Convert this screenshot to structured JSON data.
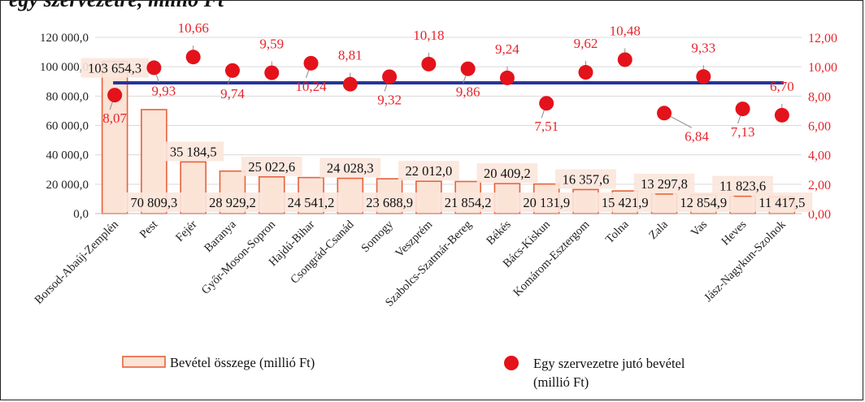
{
  "header": {
    "caption": "egy szervezetre, millió Ft"
  },
  "chart_data": {
    "type": "bar",
    "categories": [
      "Borsod-Abaúj-Zemplén",
      "Pest",
      "Fejér",
      "Baranya",
      "Győr-Moson-Sopron",
      "Hajdú-Bihar",
      "Csongrád-Csanád",
      "Somogy",
      "Veszprém",
      "Szabolcs-Szatmár-Bereg",
      "Békés",
      "Bács-Kiskun",
      "Komárom-Esztergom",
      "Tolna",
      "Zala",
      "Vas",
      "Heves",
      "Jász-Nagykun-Szolnok"
    ],
    "series": [
      {
        "name": "Bevétel összege (millió Ft)",
        "axis": "left",
        "values": [
          103654.3,
          70809.3,
          35184.5,
          28929.2,
          25022.6,
          24541.2,
          24028.3,
          23688.9,
          22012.0,
          21854.2,
          20409.2,
          20131.9,
          16357.6,
          15421.9,
          13297.8,
          12854.9,
          11823.6,
          11417.5
        ],
        "labels": [
          "103 654,3",
          "70 809,3",
          "35 184,5",
          "28 929,2",
          "25 022,6",
          "24 541,2",
          "24 028,3",
          "23 688,9",
          "22 012,0",
          "21 854,2",
          "20 409,2",
          "20 131,9",
          "16 357,6",
          "15 421,9",
          "13 297,8",
          "12 854,9",
          "11 823,6",
          "11 417,5"
        ],
        "color": "#e8623a",
        "fill": "#fbe3d6"
      },
      {
        "name": "Egy szervezetre jutó bevétel (millió Ft)",
        "axis": "right",
        "values": [
          8.07,
          9.93,
          10.66,
          9.74,
          9.59,
          10.24,
          8.81,
          9.32,
          10.18,
          9.86,
          9.24,
          7.51,
          9.62,
          10.48,
          6.84,
          9.33,
          7.13,
          6.7
        ],
        "labels": [
          "8,07",
          "9,93",
          "10,66",
          "9,74",
          "9,59",
          "10,24",
          "8,81",
          "9,32",
          "10,18",
          "9,86",
          "9,24",
          "7,51",
          "9,62",
          "10,48",
          "6,84",
          "9,33",
          "7,13",
          "6,70"
        ],
        "color": "#e4121b"
      },
      {
        "name": "",
        "type": "reference-line",
        "value": 89000,
        "color": "#26349a"
      }
    ],
    "y_left": {
      "range": [
        0,
        120000
      ],
      "ticks": [
        "0,0",
        "20 000,0",
        "40 000,0",
        "60 000,0",
        "80 000,0",
        "100 000,0",
        "120 000,0"
      ]
    },
    "y_right": {
      "range": [
        0,
        12
      ],
      "ticks": [
        "0,00",
        "2,00",
        "4,00",
        "6,00",
        "8,00",
        "10,00",
        "12,00"
      ]
    },
    "grid": true,
    "legend_position": "bottom",
    "legend": [
      {
        "label": "Bevétel összege (millió Ft)"
      },
      {
        "label_line1": "Egy szervezetre jutó bevétel",
        "label_line2": "(millió Ft)"
      }
    ]
  }
}
